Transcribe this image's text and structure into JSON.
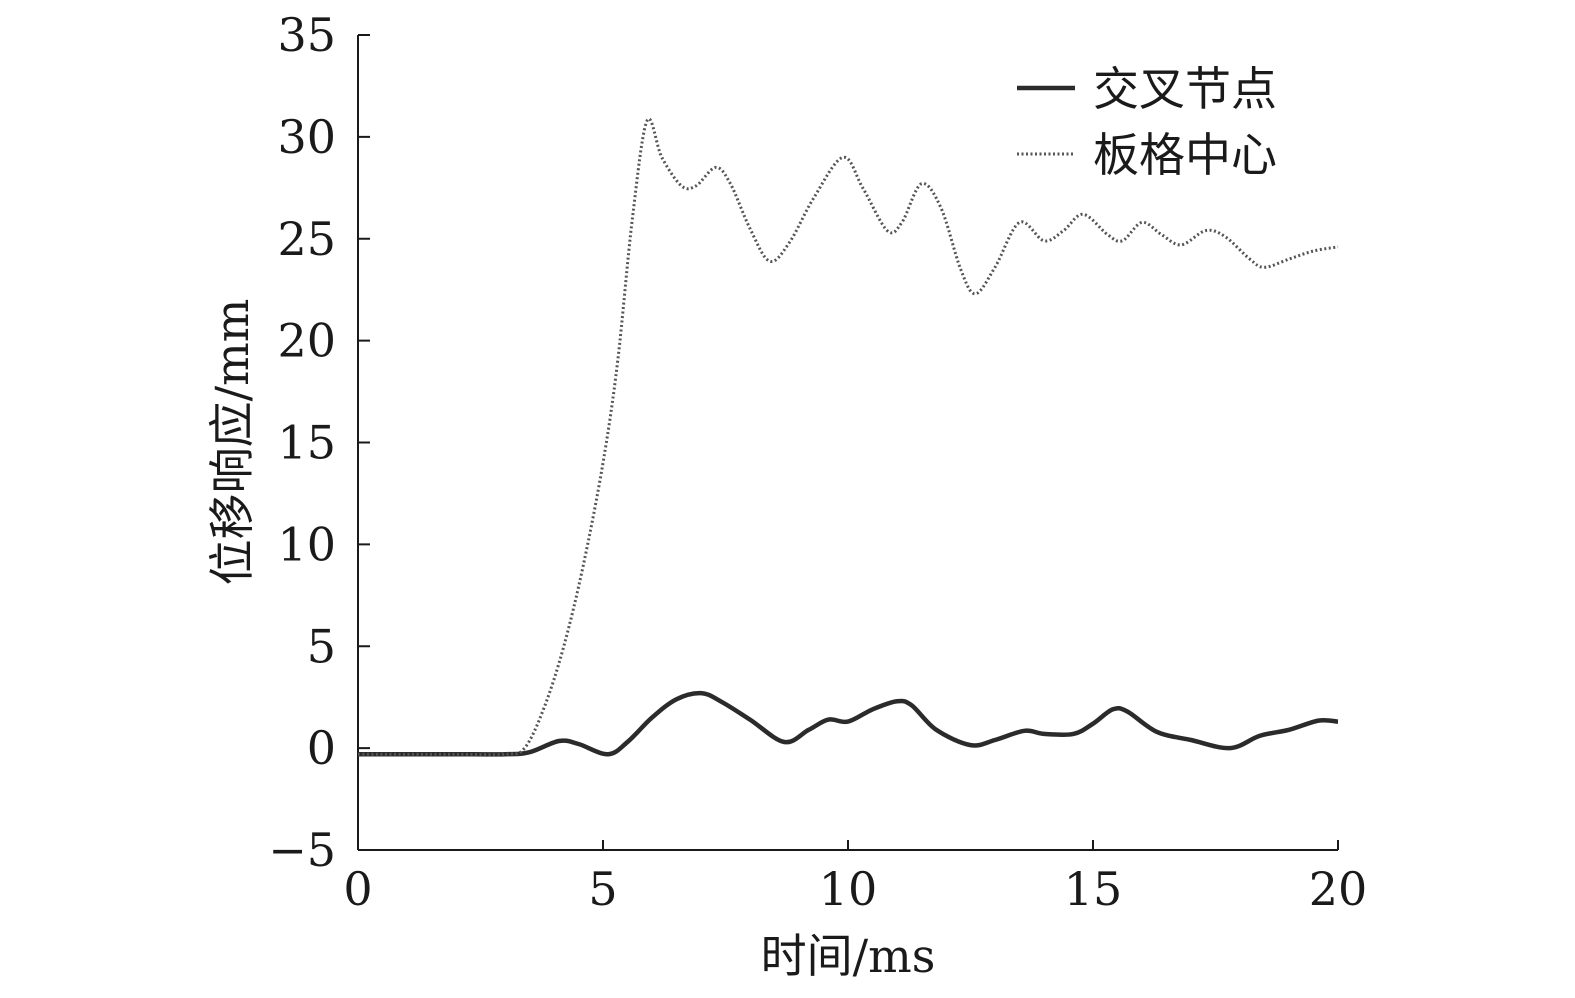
{
  "chart_data": {
    "type": "line",
    "xlabel": "时间/ms",
    "ylabel": "位移响应/mm",
    "xlim": [
      0,
      20
    ],
    "ylim": [
      -5,
      35
    ],
    "x_ticks": [
      0,
      5,
      10,
      15,
      20
    ],
    "y_ticks": [
      -5,
      0,
      5,
      10,
      15,
      20,
      25,
      30,
      35
    ],
    "grid": false,
    "legend_position": "top-right",
    "series": [
      {
        "name": "交叉节点",
        "style": "solid",
        "color": "#2b2b2b",
        "points": [
          [
            0,
            -0.3
          ],
          [
            1,
            -0.3
          ],
          [
            2,
            -0.3
          ],
          [
            3,
            -0.3
          ],
          [
            3.5,
            -0.2
          ],
          [
            4.1,
            0.35
          ],
          [
            4.5,
            0.2
          ],
          [
            5.1,
            -0.3
          ],
          [
            5.5,
            0.3
          ],
          [
            6.0,
            1.5
          ],
          [
            6.5,
            2.4
          ],
          [
            7.0,
            2.7
          ],
          [
            7.4,
            2.3
          ],
          [
            8.0,
            1.4
          ],
          [
            8.7,
            0.3
          ],
          [
            9.2,
            0.9
          ],
          [
            9.6,
            1.4
          ],
          [
            10.0,
            1.3
          ],
          [
            10.5,
            1.9
          ],
          [
            11.0,
            2.3
          ],
          [
            11.3,
            2.1
          ],
          [
            11.8,
            0.9
          ],
          [
            12.5,
            0.15
          ],
          [
            13.0,
            0.4
          ],
          [
            13.6,
            0.85
          ],
          [
            14.0,
            0.7
          ],
          [
            14.6,
            0.7
          ],
          [
            15.0,
            1.2
          ],
          [
            15.4,
            1.9
          ],
          [
            15.7,
            1.8
          ],
          [
            16.3,
            0.8
          ],
          [
            17.0,
            0.4
          ],
          [
            17.8,
            0.0
          ],
          [
            18.4,
            0.6
          ],
          [
            19.0,
            0.9
          ],
          [
            19.6,
            1.35
          ],
          [
            20.0,
            1.3
          ]
        ]
      },
      {
        "name": "板格中心",
        "style": "dotted",
        "color": "#555555",
        "points": [
          [
            0,
            -0.3
          ],
          [
            1,
            -0.3
          ],
          [
            2,
            -0.3
          ],
          [
            3,
            -0.3
          ],
          [
            3.4,
            0.0
          ],
          [
            3.8,
            2.0
          ],
          [
            4.2,
            5.0
          ],
          [
            4.6,
            9.0
          ],
          [
            5.0,
            14.0
          ],
          [
            5.3,
            19.0
          ],
          [
            5.6,
            26.0
          ],
          [
            5.9,
            30.8
          ],
          [
            6.2,
            29.0
          ],
          [
            6.6,
            27.6
          ],
          [
            6.9,
            27.6
          ],
          [
            7.3,
            28.5
          ],
          [
            7.6,
            27.7
          ],
          [
            8.0,
            25.5
          ],
          [
            8.4,
            23.9
          ],
          [
            8.8,
            24.8
          ],
          [
            9.3,
            27.0
          ],
          [
            9.9,
            29.0
          ],
          [
            10.3,
            27.5
          ],
          [
            10.8,
            25.4
          ],
          [
            11.1,
            25.8
          ],
          [
            11.5,
            27.7
          ],
          [
            11.9,
            26.5
          ],
          [
            12.3,
            23.5
          ],
          [
            12.6,
            22.3
          ],
          [
            13.0,
            23.6
          ],
          [
            13.5,
            25.8
          ],
          [
            14.0,
            24.9
          ],
          [
            14.4,
            25.4
          ],
          [
            14.8,
            26.2
          ],
          [
            15.3,
            25.2
          ],
          [
            15.6,
            24.9
          ],
          [
            16.0,
            25.8
          ],
          [
            16.4,
            25.2
          ],
          [
            16.8,
            24.7
          ],
          [
            17.3,
            25.4
          ],
          [
            17.7,
            25.1
          ],
          [
            18.2,
            24.0
          ],
          [
            18.5,
            23.6
          ],
          [
            19.0,
            24.0
          ],
          [
            19.5,
            24.4
          ],
          [
            20.0,
            24.6
          ]
        ]
      }
    ]
  }
}
